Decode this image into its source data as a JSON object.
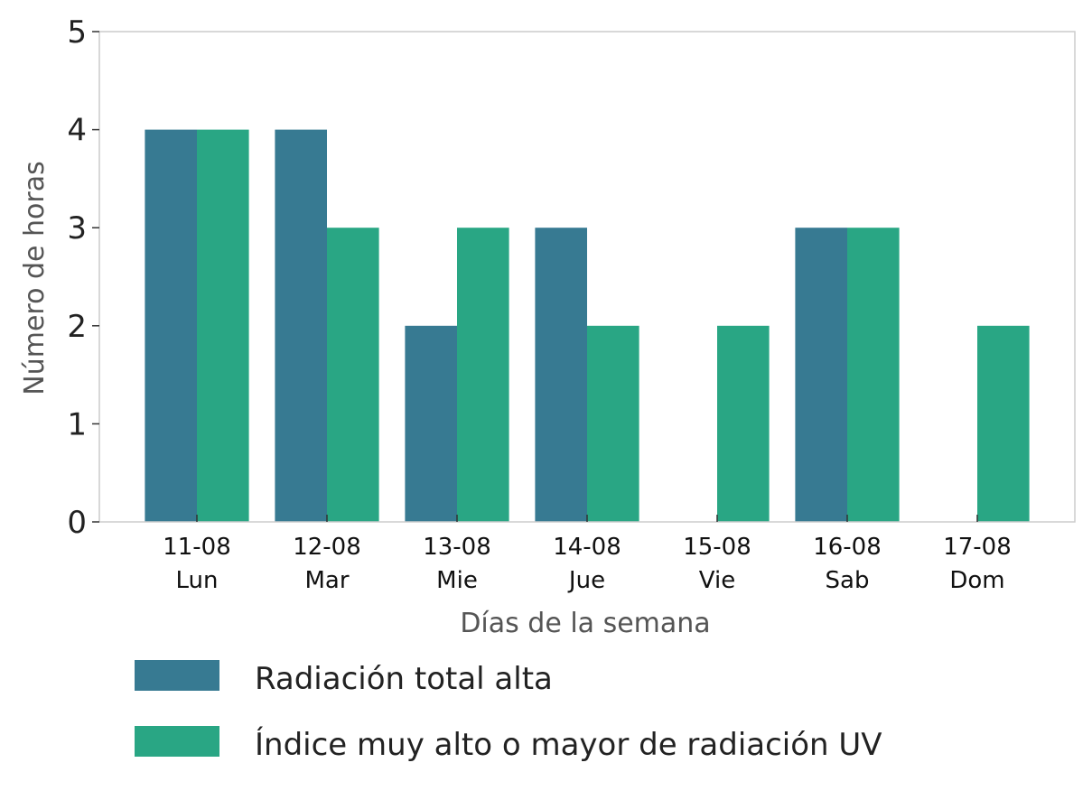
{
  "chart_data": {
    "type": "bar",
    "categories": [
      {
        "date": "11-08",
        "day": "Lun"
      },
      {
        "date": "12-08",
        "day": "Mar"
      },
      {
        "date": "13-08",
        "day": "Mie"
      },
      {
        "date": "14-08",
        "day": "Jue"
      },
      {
        "date": "15-08",
        "day": "Vie"
      },
      {
        "date": "16-08",
        "day": "Sab"
      },
      {
        "date": "17-08",
        "day": "Dom"
      }
    ],
    "series": [
      {
        "name": "Radiación total alta",
        "color": "#377a92",
        "values": [
          4,
          4,
          2,
          3,
          0,
          3,
          0
        ]
      },
      {
        "name": "Índice muy alto o mayor de radiación UV",
        "color": "#29a684",
        "values": [
          4,
          3,
          3,
          2,
          2,
          3,
          2
        ]
      }
    ],
    "xlabel": "Días de la semana",
    "ylabel": "Número de horas",
    "ylim": [
      0,
      5
    ],
    "yticks": [
      0,
      1,
      2,
      3,
      4,
      5
    ],
    "grid": false,
    "legend_position": "bottom"
  }
}
